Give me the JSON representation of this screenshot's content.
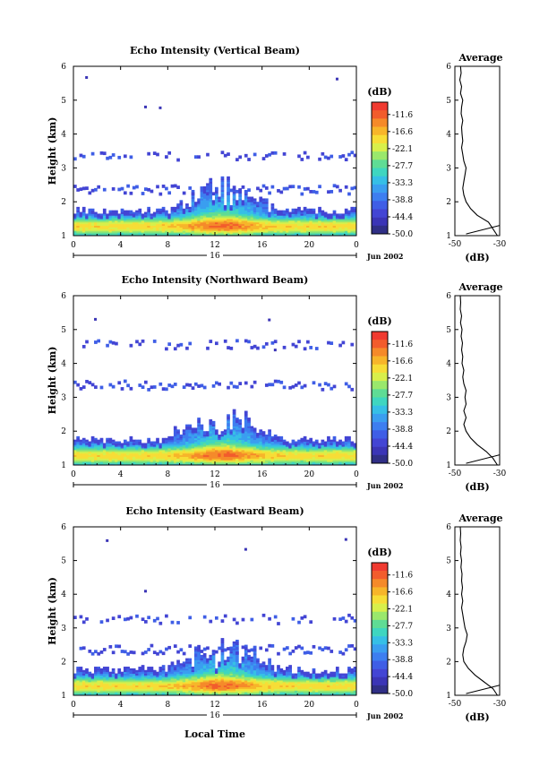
{
  "date_label": "Jun 2002",
  "colorbar": {
    "unit": "(dB)",
    "tick_labels": [
      "-11.6",
      "-16.6",
      "-22.1",
      "-27.7",
      "-33.3",
      "-38.8",
      "-44.4",
      "-50.0"
    ],
    "colors": [
      "#f03a30",
      "#f25c2c",
      "#f58a2a",
      "#f7b52a",
      "#f7dd36",
      "#d8ef4a",
      "#9ae86c",
      "#5fdc95",
      "#3fd6c0",
      "#36bfe6",
      "#3a9ef0",
      "#3d7ef0",
      "#3f5ee6",
      "#4345d4",
      "#3b35b6",
      "#302f86"
    ]
  },
  "chart_data": [
    {
      "type": "heatmap",
      "title": "Echo Intensity (Vertical Beam)",
      "ylabel": "Height (km)",
      "xlabel": "",
      "x_ticks": [
        "0",
        "4",
        "8",
        "12",
        "16",
        "20",
        "0"
      ],
      "day_label": "16",
      "y_ticks": [
        "1",
        "2",
        "3",
        "4",
        "5",
        "6"
      ],
      "xlim": [
        0,
        24
      ],
      "ylim": [
        1,
        6
      ],
      "profile": {
        "title": "Average",
        "xlabel": "(dB)",
        "x_ticks": [
          "-50",
          "-30"
        ],
        "xlim": [
          -50,
          -30
        ],
        "heights": [
          1.0,
          1.2,
          1.4,
          1.6,
          1.8,
          2.0,
          2.2,
          2.4,
          2.6,
          2.8,
          3.0,
          3.2,
          3.4,
          3.6,
          3.8,
          4.0,
          4.2,
          4.4,
          4.6,
          4.8,
          5.0,
          5.2,
          5.4,
          5.6,
          5.8,
          6.0
        ],
        "values": [
          -31,
          -33,
          -35,
          -40,
          -43,
          -45,
          -46,
          -46.5,
          -46,
          -45.5,
          -45,
          -46,
          -46.5,
          -47,
          -46.5,
          -46.8,
          -47,
          -46.5,
          -47.2,
          -47,
          -46.5,
          -47.5,
          -47,
          -47.8,
          -47.2,
          -47.5
        ]
      }
    },
    {
      "type": "heatmap",
      "title": "Echo Intensity (Northward Beam)",
      "ylabel": "Height (km)",
      "xlabel": "",
      "x_ticks": [
        "0",
        "4",
        "8",
        "12",
        "16",
        "20",
        "0"
      ],
      "day_label": "16",
      "y_ticks": [
        "1",
        "2",
        "3",
        "4",
        "5",
        "6"
      ],
      "xlim": [
        0,
        24
      ],
      "ylim": [
        1,
        6
      ],
      "profile": {
        "title": "Average",
        "xlabel": "(dB)",
        "x_ticks": [
          "-50",
          "-30"
        ],
        "xlim": [
          -50,
          -30
        ],
        "heights": [
          1.0,
          1.2,
          1.4,
          1.6,
          1.8,
          2.0,
          2.2,
          2.4,
          2.6,
          2.8,
          3.0,
          3.2,
          3.4,
          3.6,
          3.8,
          4.0,
          4.2,
          4.4,
          4.6,
          4.8,
          5.0,
          5.2,
          5.4,
          5.6,
          5.8,
          6.0
        ],
        "values": [
          -31,
          -33,
          -36,
          -40,
          -43,
          -45,
          -46,
          -45,
          -46,
          -45,
          -45.5,
          -45,
          -46,
          -46.5,
          -46,
          -46.8,
          -46.5,
          -47,
          -46.6,
          -47.2,
          -46.8,
          -47.5,
          -47,
          -47.6,
          -47.4,
          -47.6
        ]
      }
    },
    {
      "type": "heatmap",
      "title": "Echo Intensity (Eastward Beam)",
      "ylabel": "Height (km)",
      "xlabel": "Local Time",
      "x_ticks": [
        "0",
        "4",
        "8",
        "12",
        "16",
        "20",
        "0"
      ],
      "day_label": "16",
      "y_ticks": [
        "1",
        "2",
        "3",
        "4",
        "5",
        "6"
      ],
      "xlim": [
        0,
        24
      ],
      "ylim": [
        1,
        6
      ],
      "profile": {
        "title": "Average",
        "xlabel": "(dB)",
        "x_ticks": [
          "-50",
          "-30"
        ],
        "xlim": [
          -50,
          -30
        ],
        "heights": [
          1.0,
          1.2,
          1.4,
          1.6,
          1.8,
          2.0,
          2.2,
          2.4,
          2.6,
          2.8,
          3.0,
          3.2,
          3.4,
          3.6,
          3.8,
          4.0,
          4.2,
          4.4,
          4.6,
          4.8,
          5.0,
          5.2,
          5.4,
          5.6,
          5.8,
          6.0
        ],
        "values": [
          -31,
          -33,
          -37,
          -41,
          -44,
          -46,
          -46.5,
          -46,
          -45,
          -44.5,
          -45.5,
          -46,
          -46.5,
          -47,
          -46.5,
          -47,
          -46.6,
          -47,
          -46.8,
          -47.3,
          -47,
          -47.5,
          -47.2,
          -47.6,
          -47.4,
          -47.6
        ]
      }
    }
  ]
}
